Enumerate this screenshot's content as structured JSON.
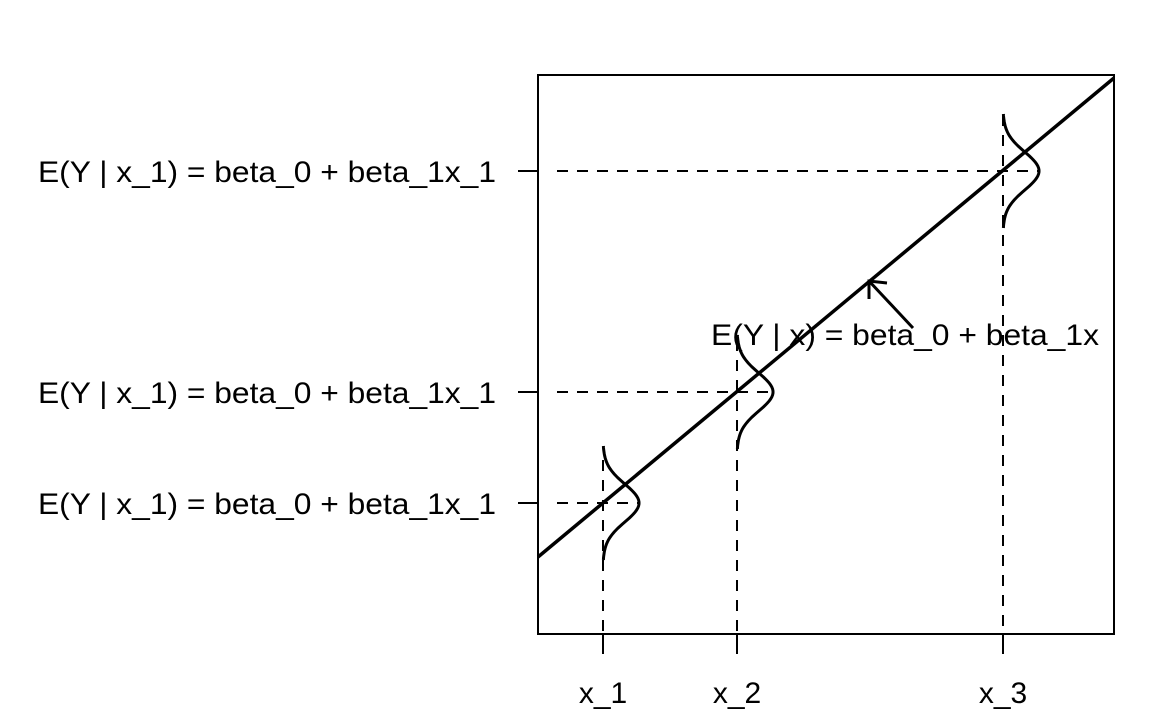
{
  "diagram": {
    "x_tick_labels": [
      "x_1",
      "x_2",
      "x_3"
    ],
    "y_tick_labels": [
      "E(Y | x_1) = beta_0 + beta_1x_1",
      "E(Y | x_1) = beta_0 + beta_1x_1",
      "E(Y | x_1) = beta_0 + beta_1x_1"
    ],
    "regression_line_label": "E(Y | x) = beta_0 + beta_1x",
    "line_color": "#000000"
  }
}
